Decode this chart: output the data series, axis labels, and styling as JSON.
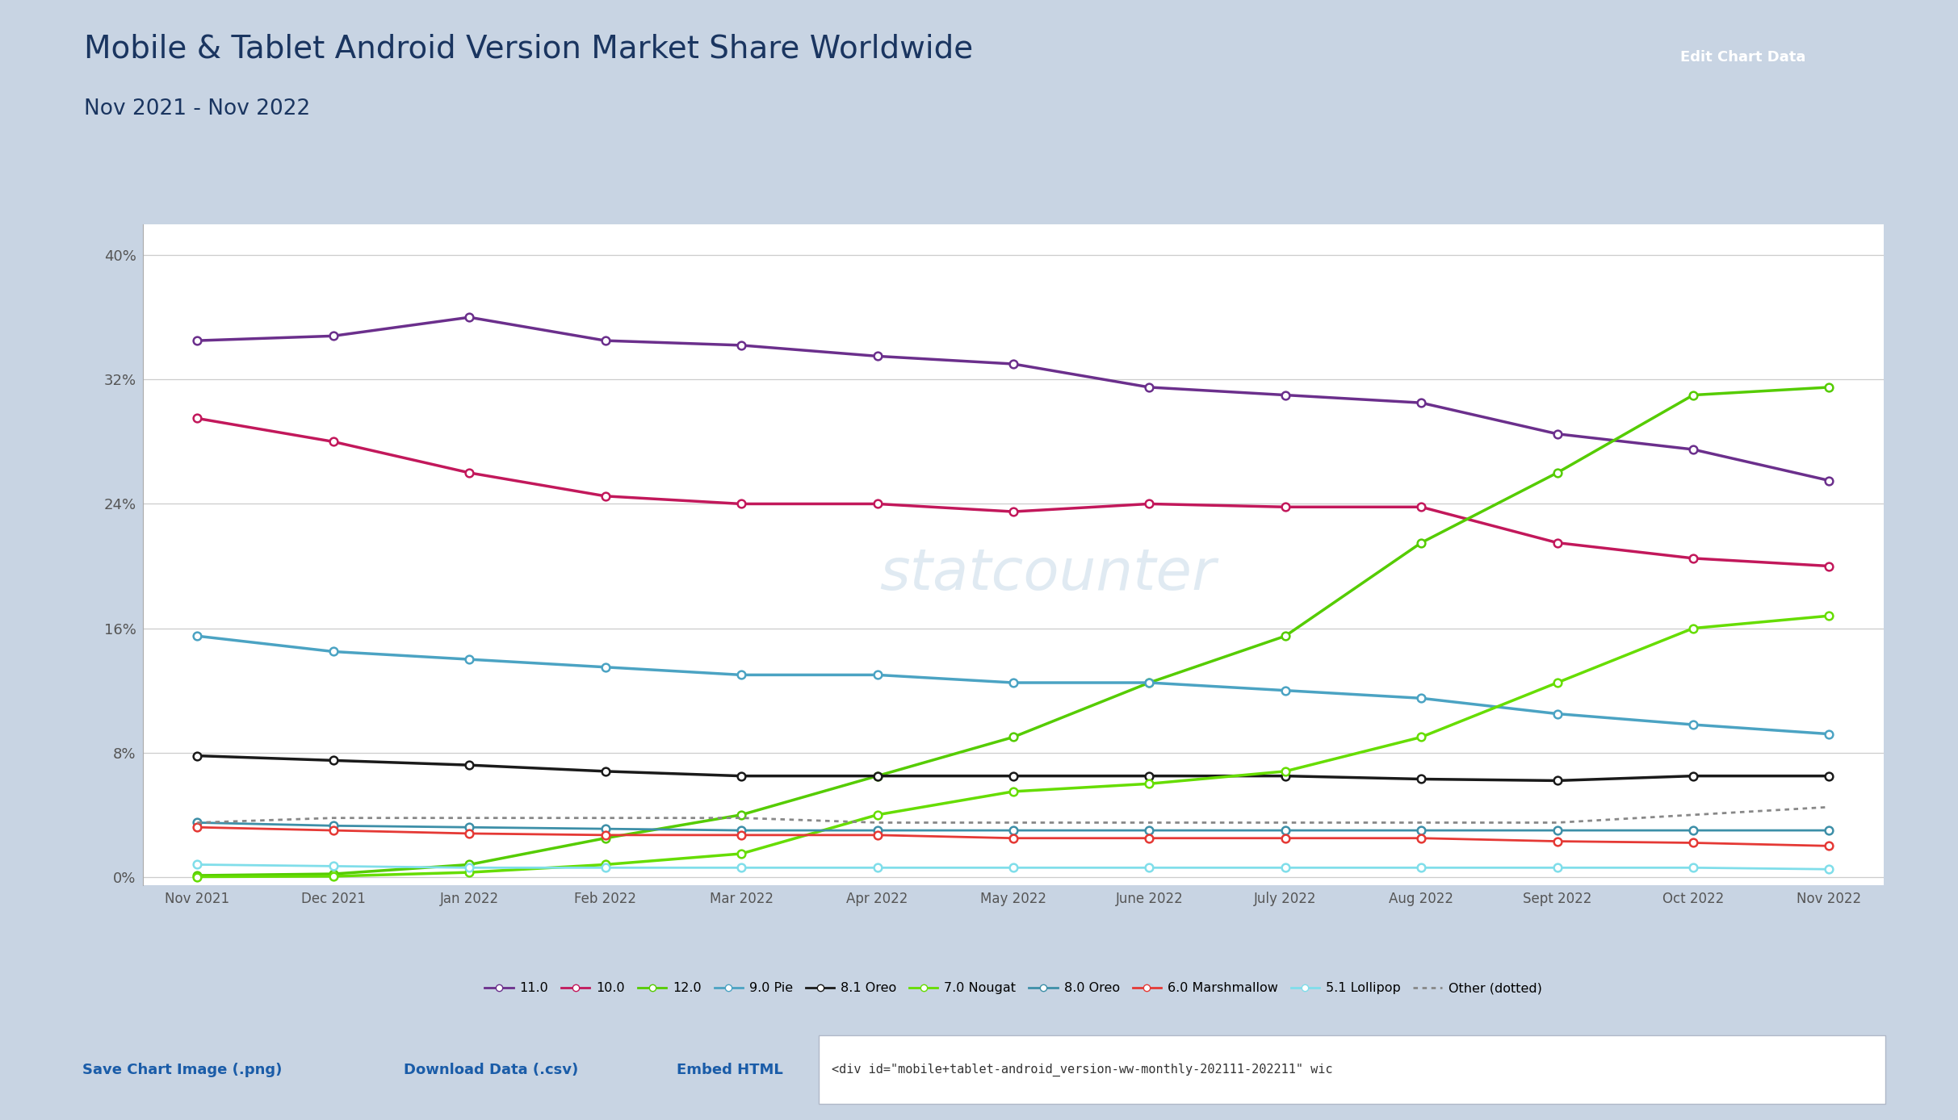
{
  "title": "Mobile & Tablet Android Version Market Share Worldwide",
  "subtitle": "Nov 2021 - Nov 2022",
  "x_labels": [
    "Nov 2021",
    "Dec 2021",
    "Jan 2022",
    "Feb 2022",
    "Mar 2022",
    "Apr 2022",
    "May 2022",
    "June 2022",
    "July 2022",
    "Aug 2022",
    "Sept 2022",
    "Oct 2022",
    "Nov 2022"
  ],
  "yticks": [
    0,
    8,
    16,
    24,
    32,
    40
  ],
  "ylim": [
    -0.5,
    42
  ],
  "series": [
    {
      "name": "11.0",
      "color": "#6B2F8C",
      "linestyle": "solid",
      "marker": "o",
      "linewidth": 2.5,
      "values": [
        34.5,
        34.8,
        36.0,
        34.5,
        34.2,
        33.5,
        33.0,
        31.5,
        31.0,
        30.5,
        28.5,
        27.5,
        25.5
      ]
    },
    {
      "name": "10.0",
      "color": "#C2185B",
      "linestyle": "solid",
      "marker": "o",
      "linewidth": 2.5,
      "values": [
        29.5,
        28.0,
        26.0,
        24.5,
        24.0,
        24.0,
        23.5,
        24.0,
        23.8,
        23.8,
        21.5,
        20.5,
        20.0
      ]
    },
    {
      "name": "12.0",
      "color": "#55CC00",
      "linestyle": "solid",
      "marker": "o",
      "linewidth": 2.5,
      "values": [
        0.1,
        0.2,
        0.8,
        2.5,
        4.0,
        6.5,
        9.0,
        12.5,
        15.5,
        21.5,
        26.0,
        31.0,
        31.5
      ]
    },
    {
      "name": "9.0 Pie",
      "color": "#4BA3C3",
      "linestyle": "solid",
      "marker": "o",
      "linewidth": 2.5,
      "values": [
        15.5,
        14.5,
        14.0,
        13.5,
        13.0,
        13.0,
        12.5,
        12.5,
        12.0,
        11.5,
        10.5,
        9.8,
        9.2
      ]
    },
    {
      "name": "8.1 Oreo",
      "color": "#1A1A1A",
      "linestyle": "solid",
      "marker": "o",
      "linewidth": 2.5,
      "values": [
        7.8,
        7.5,
        7.2,
        6.8,
        6.5,
        6.5,
        6.5,
        6.5,
        6.5,
        6.3,
        6.2,
        6.5,
        6.5
      ]
    },
    {
      "name": "7.0 Nougat",
      "color": "#66DD00",
      "linestyle": "solid",
      "marker": "o",
      "linewidth": 2.5,
      "values": [
        0.02,
        0.05,
        0.3,
        0.8,
        1.5,
        4.0,
        5.5,
        6.0,
        6.8,
        9.0,
        12.5,
        16.0,
        16.8
      ]
    },
    {
      "name": "8.0 Oreo",
      "color": "#3D8FA8",
      "linestyle": "solid",
      "marker": "o",
      "linewidth": 2.0,
      "values": [
        3.5,
        3.3,
        3.2,
        3.1,
        3.0,
        3.0,
        3.0,
        3.0,
        3.0,
        3.0,
        3.0,
        3.0,
        3.0
      ]
    },
    {
      "name": "6.0 Marshmallow",
      "color": "#E53935",
      "linestyle": "solid",
      "marker": "o",
      "linewidth": 2.0,
      "values": [
        3.2,
        3.0,
        2.8,
        2.7,
        2.7,
        2.7,
        2.5,
        2.5,
        2.5,
        2.5,
        2.3,
        2.2,
        2.0
      ]
    },
    {
      "name": "5.1 Lollipop",
      "color": "#80DEEA",
      "linestyle": "solid",
      "marker": "o",
      "linewidth": 2.0,
      "values": [
        0.8,
        0.7,
        0.6,
        0.6,
        0.6,
        0.6,
        0.6,
        0.6,
        0.6,
        0.6,
        0.6,
        0.6,
        0.5
      ]
    },
    {
      "name": "Other (dotted)",
      "color": "#888888",
      "linestyle": "dotted",
      "marker": null,
      "linewidth": 2.0,
      "values": [
        3.5,
        3.8,
        3.8,
        3.8,
        3.8,
        3.5,
        3.5,
        3.5,
        3.5,
        3.5,
        3.5,
        4.0,
        4.5
      ]
    }
  ],
  "background_color": "#ffffff",
  "grid_color": "#cccccc",
  "title_color": "#1a3560",
  "subtitle_color": "#1a3560",
  "button_bg": "#1e3d6e",
  "button_text": "Edit Chart Data",
  "button_text_color": "#ffffff",
  "footer_bg": "#dce6f0",
  "save_text": "Save Chart Image (.png)",
  "download_text": "Download Data (.csv)",
  "embed_text": "Embed HTML",
  "embed_code": "<div id=\"mobile+tablet-android_version-ww-monthly-202111-202211\" wic",
  "outer_bg": "#c8d4e3",
  "card_border": "#b0bcd0",
  "watermark_text": "statcounter",
  "watermark_color": "#c8dae8",
  "link_color": "#1a5ca8"
}
